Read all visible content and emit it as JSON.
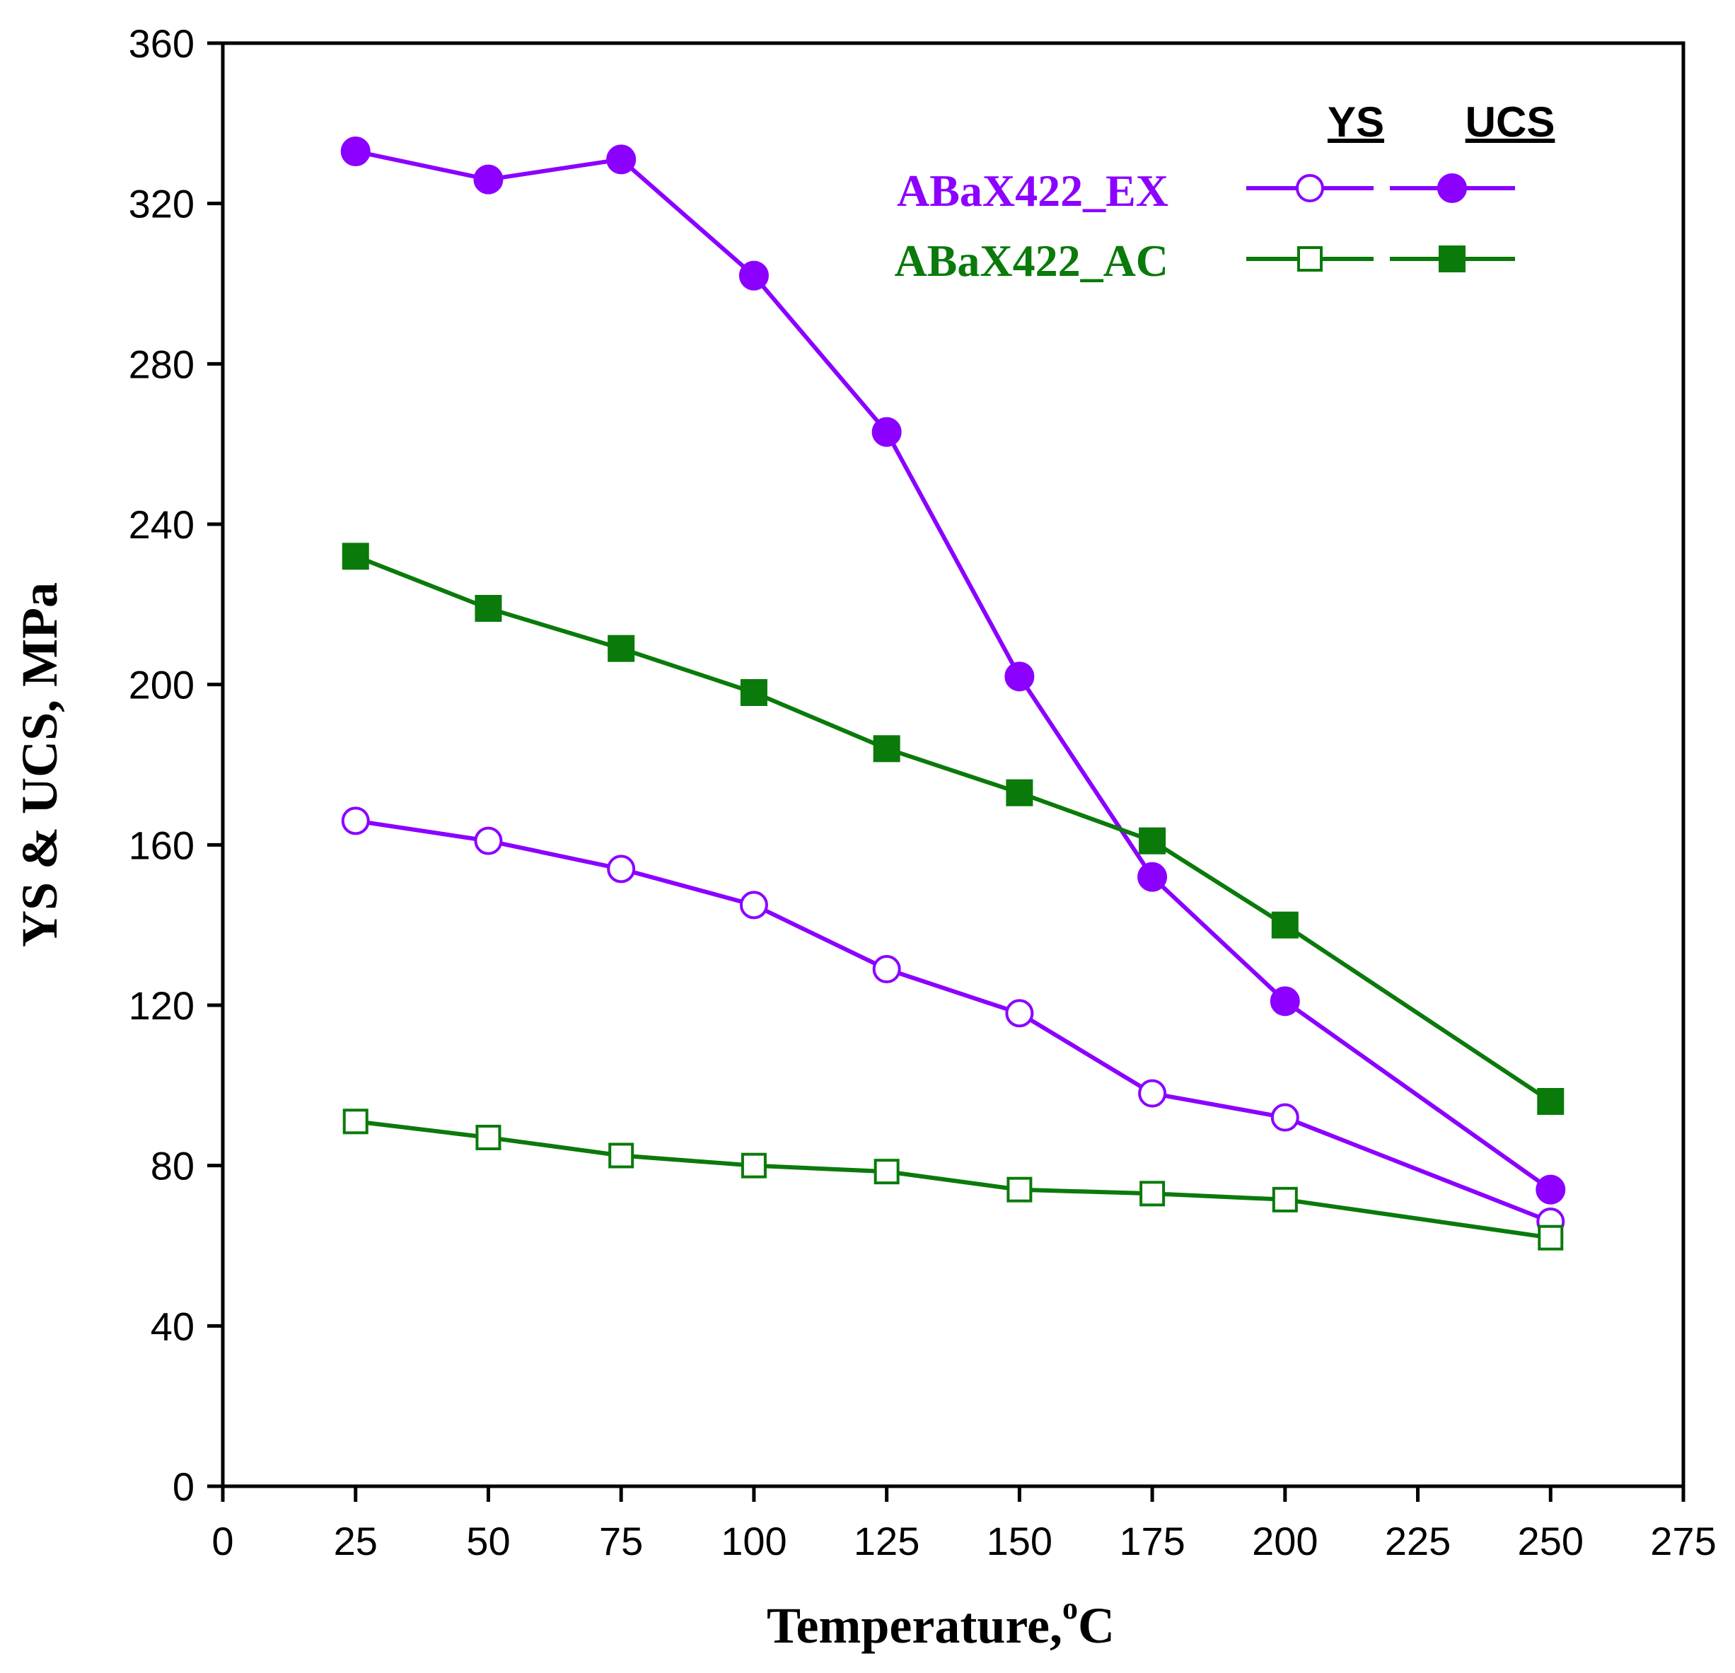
{
  "chart_data": {
    "type": "line",
    "title": "",
    "xlabel": "Temperature,",
    "xlabel_superscript": "o",
    "xlabel_unit": "C",
    "ylabel": "YS & UCS, MPa",
    "xlim": [
      0,
      275
    ],
    "ylim": [
      0,
      360
    ],
    "xticks": [
      "0",
      "25",
      "50",
      "75",
      "100",
      "125",
      "150",
      "175",
      "200",
      "225",
      "250",
      "275"
    ],
    "yticks": [
      "0",
      "40",
      "80",
      "120",
      "160",
      "200",
      "240",
      "280",
      "320",
      "360"
    ],
    "legend": {
      "position": "top-right",
      "col_headers": [
        "YS",
        "UCS"
      ],
      "entries": [
        "ABaX422_EX",
        "ABaX422_AC"
      ]
    },
    "colors": {
      "EX": "#8B00FF",
      "AC": "#0A7A0A"
    },
    "series": [
      {
        "name": "ABaX422_EX UCS",
        "material": "ABaX422_EX",
        "property": "UCS",
        "color": "#8B00FF",
        "marker": "circle-filled",
        "x": [
          25,
          50,
          75,
          100,
          125,
          150,
          175,
          200,
          250
        ],
        "y": [
          333,
          326,
          331,
          302,
          263,
          202,
          152,
          121,
          74
        ]
      },
      {
        "name": "ABaX422_EX YS",
        "material": "ABaX422_EX",
        "property": "YS",
        "color": "#8B00FF",
        "marker": "circle-open",
        "x": [
          25,
          50,
          75,
          100,
          125,
          150,
          175,
          200,
          250
        ],
        "y": [
          166,
          161,
          154,
          145,
          129,
          118,
          98,
          92,
          66
        ]
      },
      {
        "name": "ABaX422_AC UCS",
        "material": "ABaX422_AC",
        "property": "UCS",
        "color": "#0A7A0A",
        "marker": "square-filled",
        "x": [
          25,
          50,
          75,
          100,
          125,
          150,
          175,
          200,
          250
        ],
        "y": [
          232,
          219,
          209,
          198,
          184,
          173,
          161,
          140,
          96
        ]
      },
      {
        "name": "ABaX422_AC YS",
        "material": "ABaX422_AC",
        "property": "YS",
        "color": "#0A7A0A",
        "marker": "square-open",
        "x": [
          25,
          50,
          75,
          100,
          125,
          150,
          175,
          200,
          250
        ],
        "y": [
          91,
          87,
          82.5,
          80,
          78.5,
          74,
          73,
          71.5,
          62
        ]
      }
    ]
  }
}
